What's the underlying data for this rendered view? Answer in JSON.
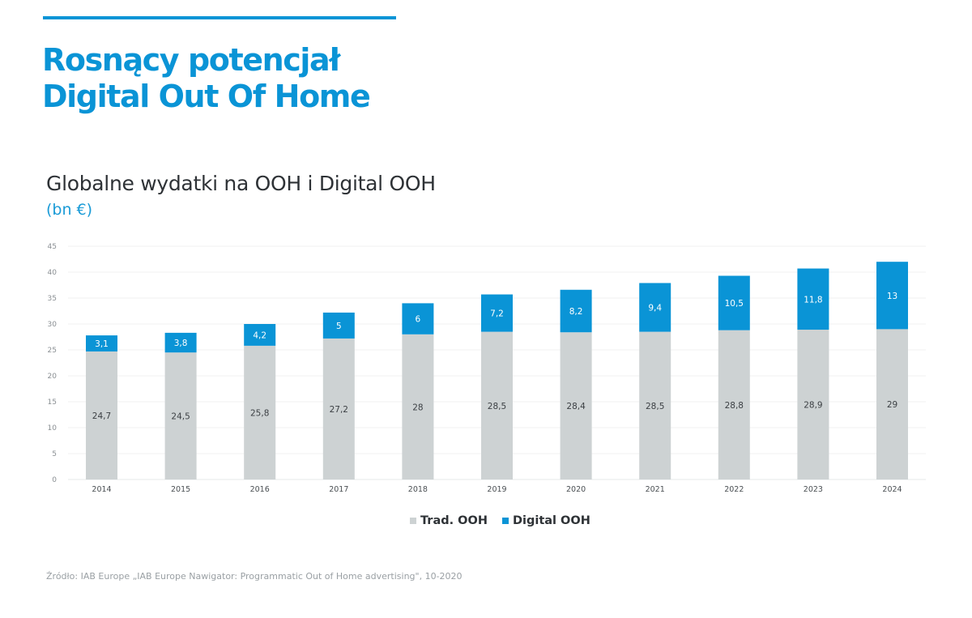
{
  "header": {
    "headline_line1": "Rosnący potencjał",
    "headline_line2": "Digital Out Of Home"
  },
  "colors": {
    "accent": "#0a94d6",
    "trad_ooh": "#cdd2d3",
    "digital_ooh": "#0a94d6"
  },
  "chart_data": {
    "type": "bar",
    "stacked": true,
    "title": "Globalne wydatki na OOH i Digital OOH",
    "subtitle": "(bn €)",
    "xlabel": "",
    "ylabel": "",
    "ylim": [
      0,
      45
    ],
    "yticks": [
      0,
      5,
      10,
      15,
      20,
      25,
      30,
      35,
      40,
      45
    ],
    "grid": true,
    "legend_position": "bottom-center",
    "decimal_separator": ",",
    "categories": [
      "2014",
      "2015",
      "2016",
      "2017",
      "2018",
      "2019",
      "2020",
      "2021",
      "2022",
      "2023",
      "2024"
    ],
    "series": [
      {
        "name": "Trad. OOH",
        "color": "#cdd2d3",
        "values": [
          24.7,
          24.5,
          25.8,
          27.2,
          28,
          28.5,
          28.4,
          28.5,
          28.8,
          28.9,
          29
        ]
      },
      {
        "name": "Digital OOH",
        "color": "#0a94d6",
        "values": [
          3.1,
          3.8,
          4.2,
          5,
          6,
          7.2,
          8.2,
          9.4,
          10.5,
          11.8,
          13
        ]
      }
    ]
  },
  "legend": [
    {
      "label": "Trad. OOH",
      "color": "#cdd2d3"
    },
    {
      "label": "Digital OOH",
      "color": "#0a94d6"
    }
  ],
  "footer": {
    "source": "Źródło: IAB Europe „IAB Europe Nawigator: Programmatic Out of Home advertising\", 10-2020"
  }
}
